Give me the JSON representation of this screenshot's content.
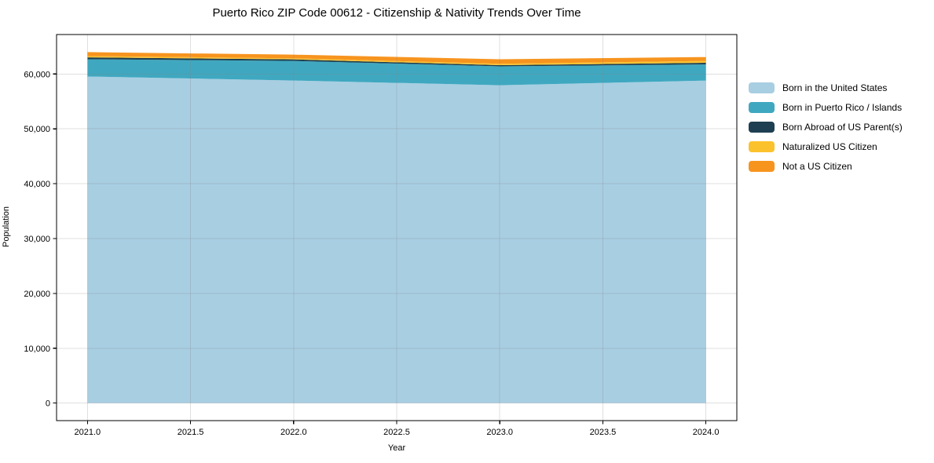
{
  "title": "Puerto Rico ZIP Code 00612 - Citizenship & Nativity Trends Over Time",
  "chart_data": {
    "type": "area",
    "stacked": true,
    "title": "Puerto Rico ZIP Code 00612 - Citizenship & Nativity Trends Over Time",
    "xlabel": "Year",
    "ylabel": "Population",
    "x": [
      2021,
      2022,
      2023,
      2024
    ],
    "series": [
      {
        "name": "Born in the United States",
        "color": "#a8cee2",
        "values": [
          59550,
          58810,
          57960,
          58800
        ]
      },
      {
        "name": "Born in Puerto Rico / Islands",
        "color": "#3fa8c0",
        "values": [
          3150,
          3570,
          3450,
          2950
        ]
      },
      {
        "name": "Born Abroad of US Parent(s)",
        "color": "#1e3f51",
        "values": [
          340,
          290,
          210,
          290
        ]
      },
      {
        "name": "Naturalized US Citizen",
        "color": "#fcc22d",
        "values": [
          230,
          190,
          250,
          340
        ]
      },
      {
        "name": "Not a US Citizen",
        "color": "#f7941e",
        "values": [
          720,
          670,
          830,
          715
        ]
      }
    ],
    "xlim": [
      2020.85,
      2024.15
    ],
    "ylim": [
      -3200,
      67200
    ],
    "x_ticks": {
      "values": [
        2021,
        2021.5,
        2022,
        2022.5,
        2023,
        2023.5,
        2024
      ],
      "labels": [
        "2021.0",
        "2021.5",
        "2022.0",
        "2022.5",
        "2023.0",
        "2023.5",
        "2024.0"
      ]
    },
    "y_ticks": {
      "values": [
        0,
        10000,
        20000,
        30000,
        40000,
        50000,
        60000
      ],
      "labels": [
        "0",
        "10,000",
        "20,000",
        "30,000",
        "40,000",
        "50,000",
        "60,000"
      ]
    },
    "grid": true,
    "legend_position": "right outside"
  },
  "colors": {
    "background": "#ffffff",
    "spine": "#000000",
    "grid": "#808080",
    "text": "#000000"
  }
}
